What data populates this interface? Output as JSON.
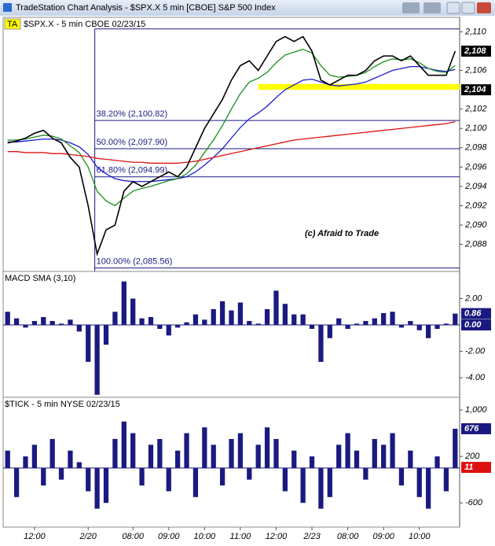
{
  "window": {
    "title": "TradeStation Chart Analysis - $SPX.X 5 min [CBOE] S&P 500 Index"
  },
  "chart_data": [
    {
      "type": "line",
      "badge": "TA",
      "title": "$SPX.X - 5 min CBOE 02/23/15",
      "series": [
        {
          "color": "#000000",
          "values": [
            2098.5,
            2098.7,
            2099.0,
            2099.5,
            2099.8,
            2099.0,
            2098.5,
            2097.0,
            2096.0,
            2092.0,
            2087.0,
            2089.5,
            2090.0,
            2093.5,
            2094.5,
            2094.0,
            2094.5,
            2095.0,
            2095.5,
            2095.0,
            2096.0,
            2098.0,
            2100.0,
            2101.5,
            2103.0,
            2105.0,
            2106.5,
            2107.0,
            2106.0,
            2107.5,
            2109.0,
            2109.5,
            2109.0,
            2109.5,
            2108.0,
            2105.0,
            2104.5,
            2105.0,
            2105.5,
            2105.5,
            2106.0,
            2107.0,
            2107.5,
            2107.5,
            2107.0,
            2107.5,
            2106.5,
            2105.5,
            2105.5,
            2105.5,
            2108.0
          ]
        },
        {
          "color": "#dd1111",
          "values": [
            2097.6,
            2097.6,
            2097.5,
            2097.5,
            2097.5,
            2097.4,
            2097.4,
            2097.3,
            2097.2,
            2097.1,
            2096.9,
            2096.8,
            2096.7,
            2096.6,
            2096.5,
            2096.5,
            2096.4,
            2096.4,
            2096.4,
            2096.4,
            2096.5,
            2096.6,
            2096.8,
            2097.0,
            2097.2,
            2097.4,
            2097.6,
            2097.8,
            2098.0,
            2098.2,
            2098.4,
            2098.6,
            2098.8,
            2098.9,
            2099.0,
            2099.1,
            2099.2,
            2099.3,
            2099.4,
            2099.5,
            2099.6,
            2099.7,
            2099.8,
            2099.9,
            2100.0,
            2100.1,
            2100.2,
            2100.3,
            2100.4,
            2100.5,
            2100.7
          ]
        },
        {
          "color": "#1b8f1b",
          "values": [
            2098.8,
            2098.8,
            2098.9,
            2099.1,
            2099.3,
            2099.2,
            2098.9,
            2098.2,
            2097.5,
            2096.0,
            2093.5,
            2092.5,
            2092.0,
            2092.8,
            2093.5,
            2093.8,
            2094.0,
            2094.3,
            2094.6,
            2094.8,
            2095.3,
            2096.2,
            2097.5,
            2098.8,
            2100.3,
            2102.0,
            2103.6,
            2104.8,
            2105.2,
            2105.8,
            2106.8,
            2107.6,
            2107.9,
            2108.2,
            2107.8,
            2106.5,
            2105.5,
            2105.3,
            2105.4,
            2105.5,
            2105.8,
            2106.4,
            2106.9,
            2107.2,
            2107.1,
            2107.2,
            2106.8,
            2106.2,
            2105.9,
            2105.8,
            2106.5
          ]
        },
        {
          "color": "#1a1ad0",
          "values": [
            2098.6,
            2098.6,
            2098.7,
            2098.8,
            2098.9,
            2098.9,
            2098.8,
            2098.5,
            2098.1,
            2097.3,
            2096.0,
            2095.3,
            2094.8,
            2094.6,
            2094.5,
            2094.5,
            2094.5,
            2094.6,
            2094.7,
            2094.8,
            2095.0,
            2095.5,
            2096.2,
            2097.0,
            2097.9,
            2099.0,
            2100.1,
            2101.0,
            2101.6,
            2102.3,
            2103.2,
            2104.0,
            2104.5,
            2105.0,
            2105.1,
            2104.8,
            2104.5,
            2104.4,
            2104.5,
            2104.6,
            2104.8,
            2105.2,
            2105.6,
            2106.0,
            2106.2,
            2106.4,
            2106.4,
            2106.2,
            2106.0,
            2105.9,
            2106.1
          ]
        }
      ],
      "ylim": [
        2085.2,
        2111.5
      ],
      "yticks": [
        {
          "value": 2088,
          "label": "2,088"
        },
        {
          "value": 2090,
          "label": "2,090"
        },
        {
          "value": 2092,
          "label": "2,092"
        },
        {
          "value": 2094,
          "label": "2,094"
        },
        {
          "value": 2096,
          "label": "2,096"
        },
        {
          "value": 2098,
          "label": "2,098"
        },
        {
          "value": 2100,
          "label": "2,100"
        },
        {
          "value": 2102,
          "label": "2,102"
        },
        {
          "value": 2106,
          "label": "2,106"
        },
        {
          "value": 2110,
          "label": "2,110"
        }
      ],
      "fib_levels": [
        {
          "value": 2110.3
        },
        {
          "value": 2100.82,
          "label": "38.20% (2,100.82)"
        },
        {
          "value": 2097.9,
          "label": "50.00% (2,097.90)"
        },
        {
          "value": 2094.99,
          "label": "61.80% (2,094.99)"
        },
        {
          "value": 2085.56,
          "label": "100.00% (2,085.56)"
        }
      ],
      "highlight_band": [
        2104.0,
        2104.6
      ],
      "highlight_color": "#ffff00",
      "tags": [
        {
          "value": 2108,
          "label": "2,108",
          "color": "#000000"
        },
        {
          "value": 2104,
          "label": "2,104",
          "color": "#000000"
        }
      ],
      "watermark": "(c) Afraid to Trade"
    },
    {
      "type": "bar",
      "title": "MACD SMA (3,10)",
      "color": "#1a1a80",
      "values": [
        1.0,
        0.5,
        -0.2,
        0.3,
        0.6,
        0.3,
        0.1,
        0.4,
        -0.5,
        -2.8,
        -5.3,
        -1.5,
        1.0,
        3.3,
        2.0,
        0.5,
        0.6,
        -0.3,
        -0.8,
        -0.2,
        0.2,
        0.8,
        0.4,
        1.2,
        1.8,
        1.1,
        1.7,
        0.3,
        0.1,
        1.2,
        2.6,
        1.6,
        0.8,
        0.8,
        -0.3,
        -2.8,
        -1.0,
        0.5,
        -0.3,
        0.1,
        0.3,
        0.5,
        0.9,
        1.0,
        -0.2,
        0.3,
        -0.4,
        -1.0,
        -0.3,
        0.1,
        0.86
      ],
      "ylim": [
        -5.49,
        4.06
      ],
      "yticks": [
        {
          "value": 2,
          "label": "2.00"
        },
        {
          "value": -2,
          "label": "-2.00"
        },
        {
          "value": -4,
          "label": "-4.00"
        }
      ],
      "tags": [
        {
          "value": 0.86,
          "label": "0.86",
          "color": "#1a1a80"
        },
        {
          "value": 0,
          "label": "0.00",
          "color": "#1a1a80"
        }
      ]
    },
    {
      "type": "bar",
      "title": "$TICK - 5 min NYSE 02/23/15",
      "color": "#1a1a80",
      "categories": [
        null,
        null,
        null,
        "12:00",
        null,
        null,
        null,
        null,
        null,
        "2/20",
        null,
        null,
        null,
        null,
        "08:00",
        null,
        null,
        null,
        "09:00",
        null,
        null,
        null,
        "10:00",
        null,
        null,
        null,
        "11:00",
        null,
        null,
        null,
        "12:00",
        null,
        null,
        null,
        "2/23",
        null,
        null,
        null,
        "08:00",
        null,
        null,
        null,
        "09:00",
        null,
        null,
        null,
        "10:00",
        null,
        null,
        null,
        null
      ],
      "values": [
        300,
        -500,
        200,
        400,
        -300,
        500,
        -200,
        300,
        100,
        -400,
        -700,
        -600,
        500,
        800,
        600,
        -300,
        400,
        500,
        -400,
        300,
        600,
        -500,
        700,
        400,
        -300,
        500,
        600,
        -200,
        400,
        700,
        500,
        -400,
        300,
        -600,
        200,
        -700,
        -500,
        400,
        600,
        300,
        -200,
        500,
        400,
        600,
        -300,
        300,
        -500,
        -700,
        200,
        -400,
        676
      ],
      "ylim": [
        -1017,
        1217
      ],
      "yticks": [
        {
          "value": 1000,
          "label": "1,000"
        },
        200,
        -600
      ],
      "tags": [
        {
          "value": 676,
          "label": "676",
          "color": "#1a1a80"
        },
        {
          "value": 11,
          "label": "11",
          "color": "#dd1111"
        }
      ]
    }
  ]
}
